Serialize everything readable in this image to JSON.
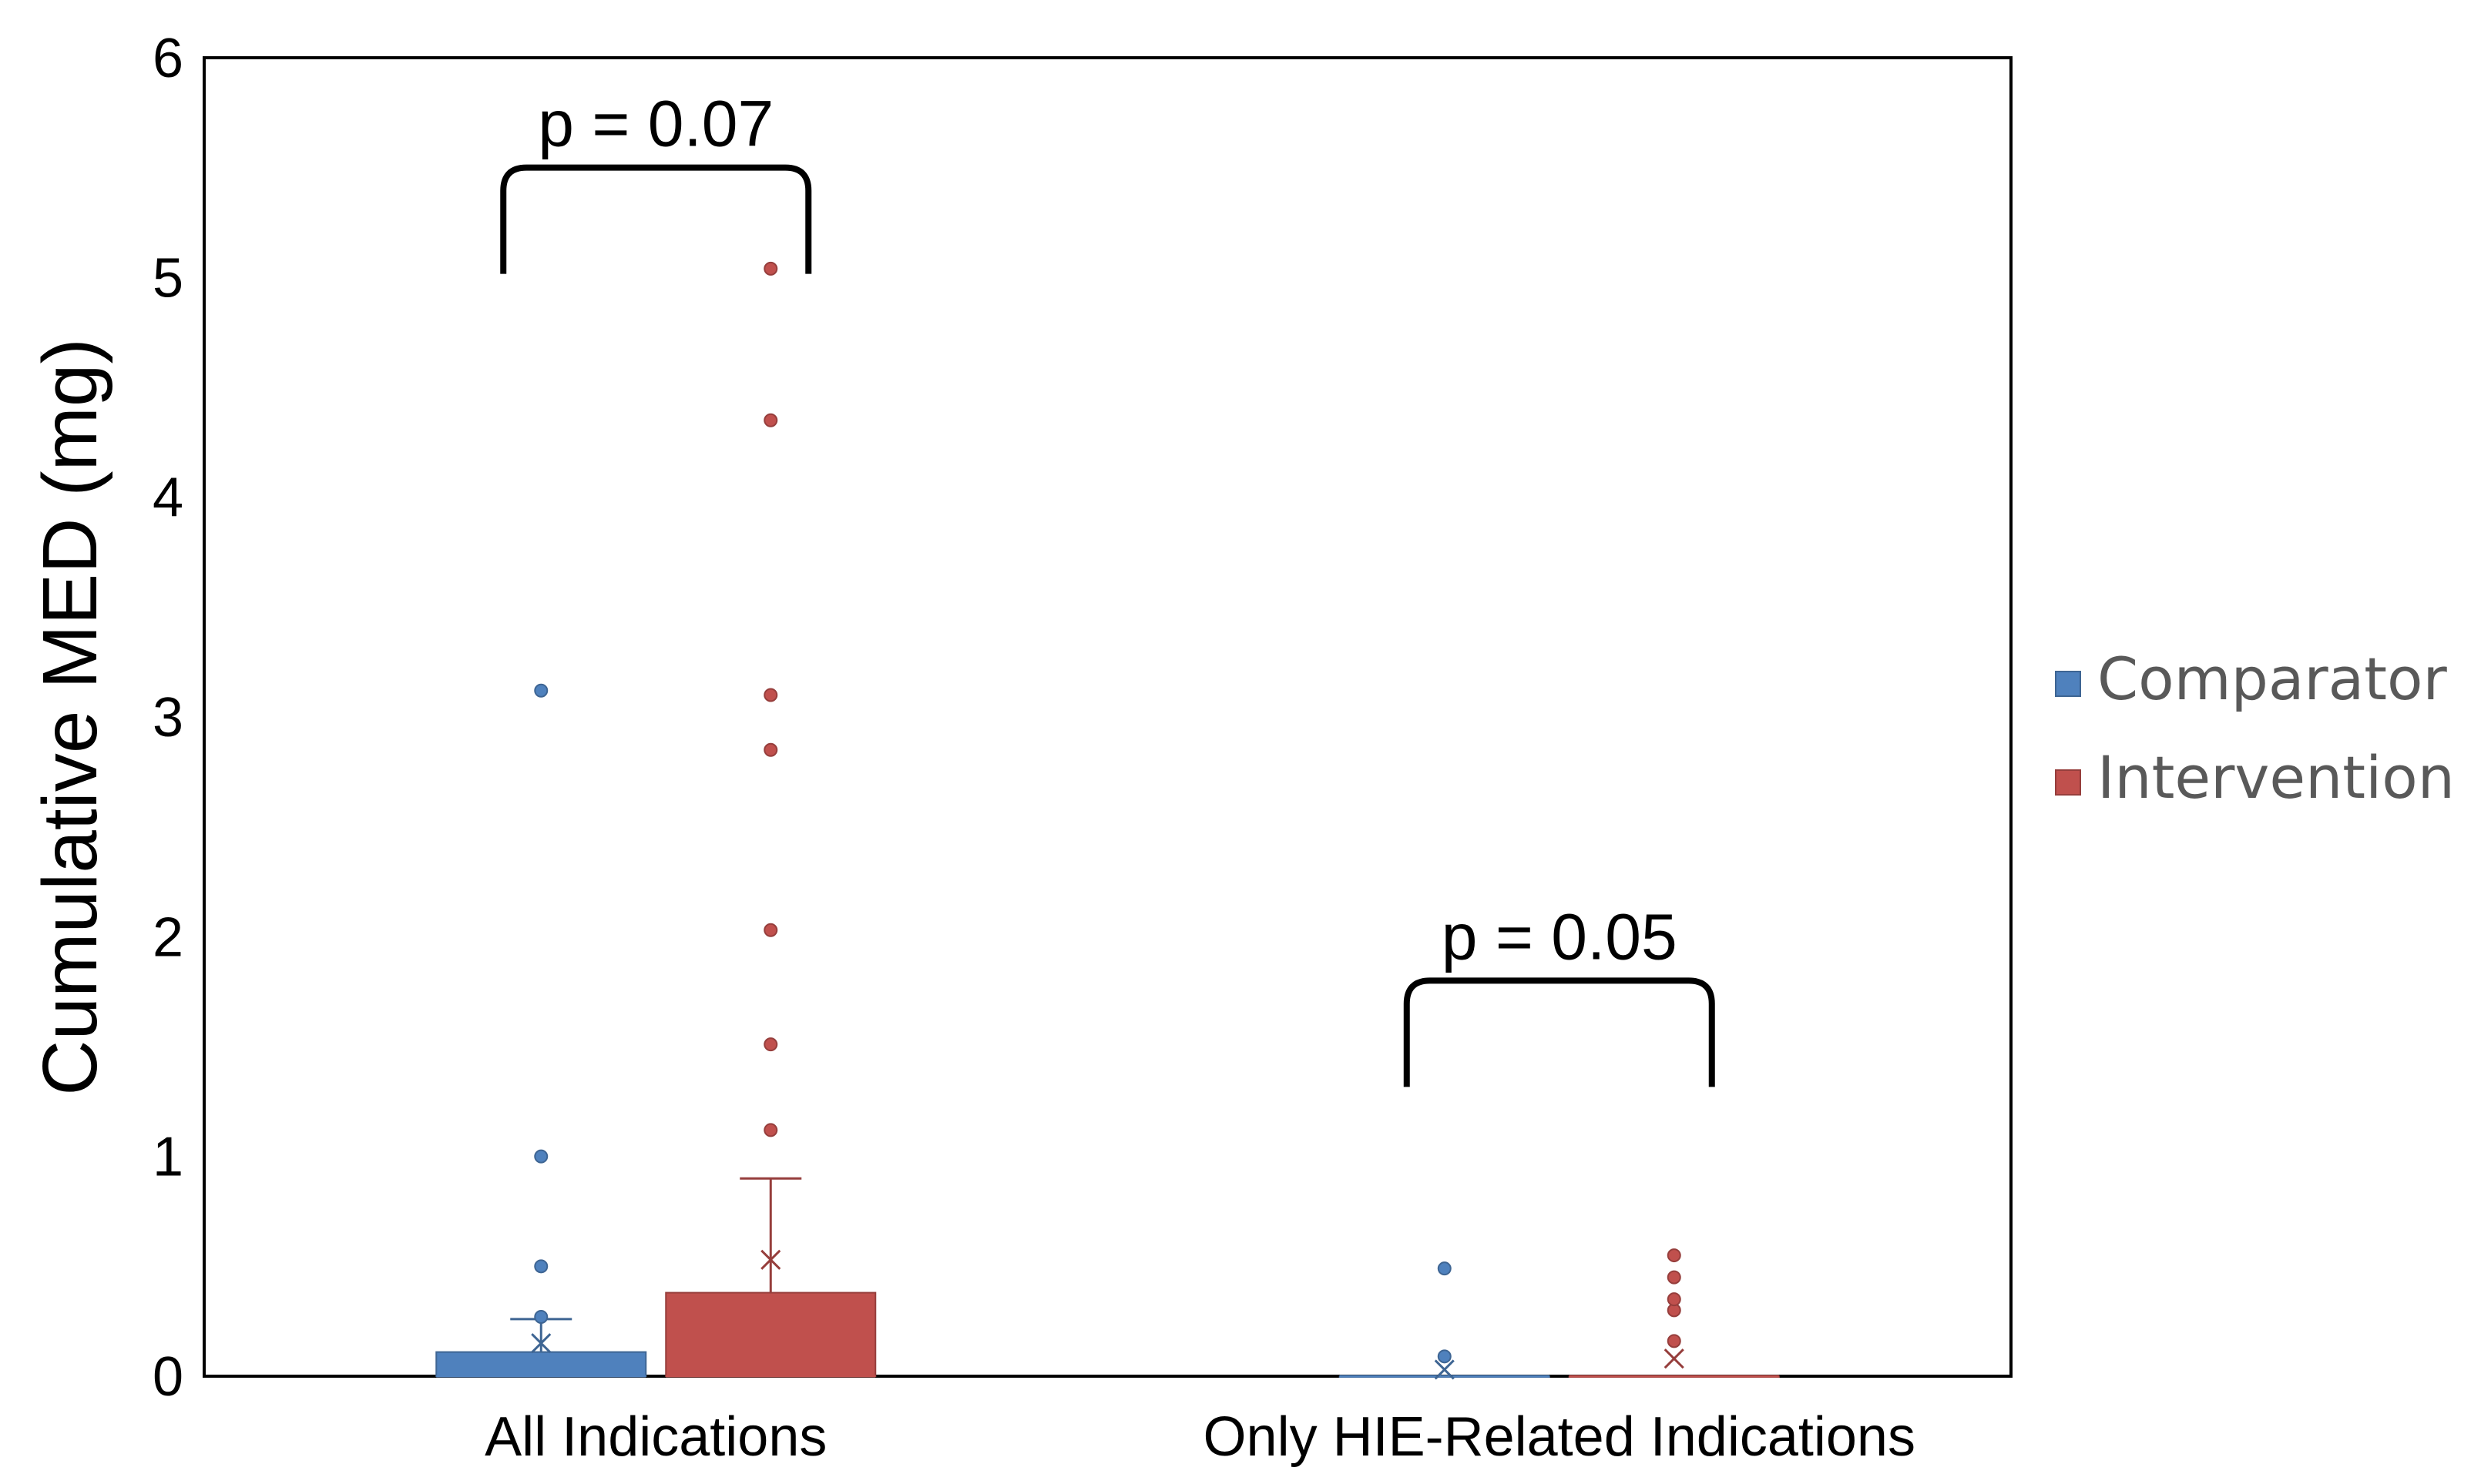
{
  "chart_data": {
    "type": "box",
    "ylabel": "Cumulative MED (mg)",
    "xlabel": "",
    "ylim": [
      0,
      6
    ],
    "yticks": [
      "0",
      "1",
      "2",
      "3",
      "4",
      "5",
      "6"
    ],
    "grid": false,
    "legend_placement": "right",
    "categories": [
      "All Indications",
      "Only HIE-Related Indications"
    ],
    "series": [
      {
        "name": "Comparator",
        "color": "#4F81BD",
        "boxes": [
          {
            "q1": 0.0,
            "median": 0.0,
            "q3": 0.11,
            "whisker_low": 0.0,
            "whisker_high": 0.26,
            "mean": 0.15,
            "outliers": [
              0.27,
              0.5,
              1.0,
              3.12
            ]
          },
          {
            "q1": 0.0,
            "median": 0.0,
            "q3": 0.0,
            "whisker_low": 0.0,
            "whisker_high": 0.0,
            "mean": 0.03,
            "outliers": [
              0.09,
              0.49
            ]
          }
        ]
      },
      {
        "name": "Intervention",
        "color": "#C0504D",
        "boxes": [
          {
            "q1": 0.0,
            "median": 0.0,
            "q3": 0.38,
            "whisker_low": 0.0,
            "whisker_high": 0.9,
            "mean": 0.53,
            "outliers": [
              1.12,
              1.51,
              2.03,
              2.85,
              3.1,
              4.35,
              5.04
            ]
          },
          {
            "q1": 0.0,
            "median": 0.0,
            "q3": 0.0,
            "whisker_low": 0.0,
            "whisker_high": 0.0,
            "mean": 0.08,
            "outliers": [
              0.16,
              0.3,
              0.35,
              0.45,
              0.55
            ]
          }
        ]
      }
    ],
    "annotations": [
      {
        "text": "p = 0.07",
        "category": 0,
        "bracket_y": 5.5
      },
      {
        "text": "p = 0.05",
        "category": 1,
        "bracket_y": 1.8
      }
    ]
  }
}
